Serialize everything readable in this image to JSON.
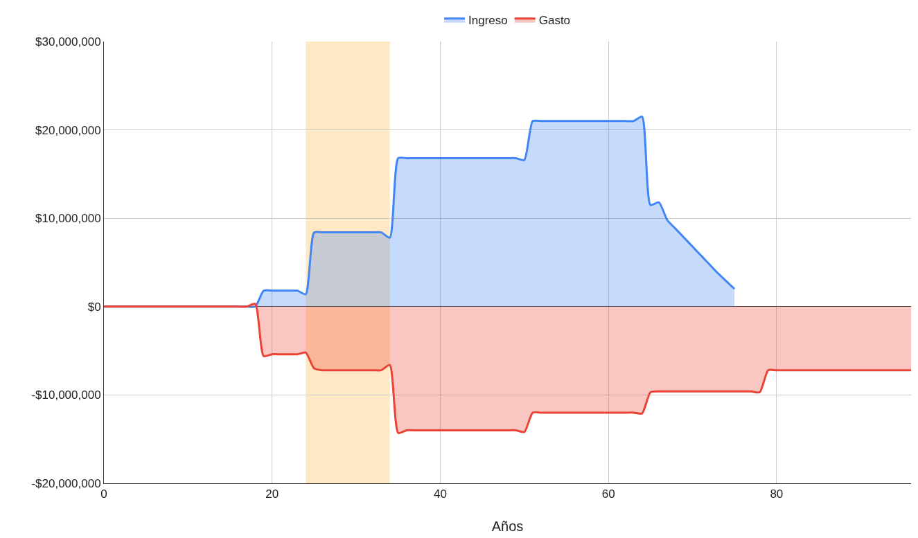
{
  "chart_data": {
    "type": "area",
    "xlabel": "Años",
    "x": [
      0,
      16,
      17,
      18,
      19,
      20,
      21,
      22,
      23,
      24,
      25,
      26,
      27,
      28,
      29,
      30,
      31,
      32,
      33,
      34,
      35,
      36,
      37,
      38,
      39,
      40,
      41,
      42,
      43,
      44,
      45,
      46,
      47,
      48,
      49,
      50,
      51,
      52,
      53,
      54,
      55,
      56,
      57,
      58,
      59,
      60,
      61,
      62,
      63,
      64,
      65,
      66,
      67,
      68,
      69,
      70,
      71,
      72,
      73,
      74,
      75,
      76,
      77,
      78,
      79,
      80,
      85,
      90,
      96
    ],
    "series": [
      {
        "name": "Ingreso",
        "color": "#4285f4",
        "values": [
          0,
          0,
          0,
          0,
          1800000,
          1800000,
          1800000,
          1800000,
          1800000,
          1400000,
          8400000,
          8400000,
          8400000,
          8400000,
          8400000,
          8400000,
          8400000,
          8400000,
          8400000,
          7800000,
          16800000,
          16800000,
          16800000,
          16800000,
          16800000,
          16800000,
          16800000,
          16800000,
          16800000,
          16800000,
          16800000,
          16800000,
          16800000,
          16800000,
          16800000,
          16600000,
          21000000,
          21000000,
          21000000,
          21000000,
          21000000,
          21000000,
          21000000,
          21000000,
          21000000,
          21000000,
          21000000,
          21000000,
          21000000,
          21500000,
          11500000,
          11800000,
          9800000,
          8800000,
          7800000,
          6800000,
          5800000,
          4800000,
          3800000,
          2900000,
          2000000,
          null,
          null,
          null,
          null,
          null,
          null,
          null,
          null
        ]
      },
      {
        "name": "Gasto",
        "color": "#ea4335",
        "values": [
          0,
          0,
          0,
          300000,
          -5600000,
          -5400000,
          -5400000,
          -5400000,
          -5400000,
          -5200000,
          -7000000,
          -7200000,
          -7200000,
          -7200000,
          -7200000,
          -7200000,
          -7200000,
          -7200000,
          -7200000,
          -6600000,
          -14300000,
          -14000000,
          -14000000,
          -14000000,
          -14000000,
          -14000000,
          -14000000,
          -14000000,
          -14000000,
          -14000000,
          -14000000,
          -14000000,
          -14000000,
          -14000000,
          -14000000,
          -14200000,
          -12000000,
          -12000000,
          -12000000,
          -12000000,
          -12000000,
          -12000000,
          -12000000,
          -12000000,
          -12000000,
          -12000000,
          -12000000,
          -12000000,
          -12000000,
          -12100000,
          -9700000,
          -9600000,
          -9600000,
          -9600000,
          -9600000,
          -9600000,
          -9600000,
          -9600000,
          -9600000,
          -9600000,
          -9600000,
          -9600000,
          -9600000,
          -9700000,
          -7200000,
          -7200000,
          -7200000,
          -7200000,
          -7200000
        ]
      }
    ],
    "xlim": [
      0,
      96
    ],
    "xticks": [
      0,
      20,
      40,
      60,
      80
    ],
    "ylim": [
      -20000000,
      30000000
    ],
    "yticks": [
      {
        "value": -20000000,
        "label": "-$20,000,000"
      },
      {
        "value": -10000000,
        "label": "-$10,000,000"
      },
      {
        "value": 0,
        "label": "$0"
      },
      {
        "value": 10000000,
        "label": "$10,000,000"
      },
      {
        "value": 20000000,
        "label": "$20,000,000"
      },
      {
        "value": 30000000,
        "label": "$30,000,000"
      }
    ],
    "bands": [
      {
        "axis": "x",
        "from": 24,
        "to": 34,
        "color": "#ffe9c4"
      }
    ],
    "grid": true,
    "legend": "top",
    "marker": "none",
    "line_style": "solid"
  }
}
